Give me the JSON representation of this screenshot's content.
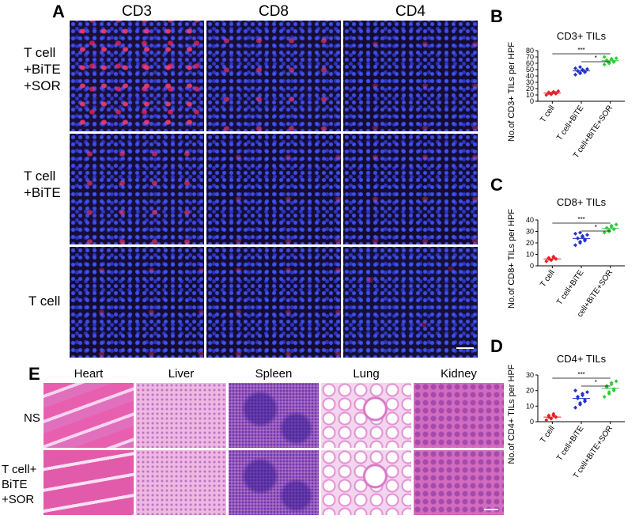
{
  "panel_letters": {
    "a": "A",
    "b": "B",
    "c": "C",
    "d": "D",
    "e": "E"
  },
  "panel_a": {
    "columns": [
      "CD3",
      "CD8",
      "CD4"
    ],
    "rows": [
      {
        "lines": [
          "T cell",
          "+BiTE",
          "+SOR"
        ]
      },
      {
        "lines": [
          "T cell",
          "+BiTE"
        ]
      },
      {
        "lines": [
          "T cell"
        ]
      }
    ]
  },
  "panel_e": {
    "columns": [
      "Heart",
      "Liver",
      "Spleen",
      "Lung",
      "Kidney"
    ],
    "rows": [
      {
        "lines": [
          "NS"
        ]
      },
      {
        "lines": [
          "T cell+",
          "BiTE",
          "+SOR"
        ]
      }
    ]
  },
  "chart_data": [
    {
      "type": "scatter",
      "panel": "B",
      "title": "CD3+ TILs",
      "ylabel": "No.of CD3+ TILs per HPF",
      "ylim": [
        0,
        80
      ],
      "yticks": [
        "0",
        "10",
        "20",
        "30",
        "40",
        "50",
        "60",
        "70",
        "80"
      ],
      "categories": [
        "T cell",
        "T cell+BiTE",
        "T cell+BiTE+SOR"
      ],
      "colors": [
        "#e8202a",
        "#2233cc",
        "#2fcc3a"
      ],
      "series": [
        {
          "values": [
            10,
            11,
            12,
            12,
            13,
            13,
            14,
            14,
            15,
            16
          ]
        },
        {
          "values": [
            42,
            44,
            45,
            46,
            47,
            48,
            48,
            49,
            50,
            51,
            52,
            54
          ]
        },
        {
          "values": [
            58,
            60,
            61,
            62,
            63,
            64,
            65,
            66,
            67,
            68,
            70
          ]
        }
      ],
      "significance": [
        {
          "pair": [
            0,
            2
          ],
          "label": "***"
        },
        {
          "pair": [
            1,
            2
          ],
          "label": "*"
        }
      ]
    },
    {
      "type": "scatter",
      "panel": "C",
      "title": "CD8+ TILs",
      "ylabel": "No.of CD8+ TILs per HPF",
      "ylim": [
        0,
        40
      ],
      "yticks": [
        "0",
        "10",
        "20",
        "30",
        "40"
      ],
      "categories": [
        "T cell",
        "T cell+BiTE",
        "T cell+BiTE+SOR"
      ],
      "colors": [
        "#e8202a",
        "#2233cc",
        "#2fcc3a"
      ],
      "series": [
        {
          "values": [
            4,
            5,
            5,
            6,
            6,
            6,
            7,
            7,
            8
          ]
        },
        {
          "values": [
            18,
            20,
            21,
            22,
            23,
            24,
            24,
            25,
            26,
            27,
            28,
            29
          ]
        },
        {
          "values": [
            29,
            30,
            31,
            32,
            32,
            33,
            33,
            34,
            35,
            36
          ]
        }
      ],
      "significance": [
        {
          "pair": [
            0,
            2
          ],
          "label": "***"
        },
        {
          "pair": [
            1,
            2
          ],
          "label": "*"
        }
      ]
    },
    {
      "type": "scatter",
      "panel": "D",
      "title": "CD4+ TILs",
      "ylabel": "No.of CD4+ TILs per HPF",
      "ylim": [
        0,
        30
      ],
      "yticks": [
        "0",
        "10",
        "20",
        "30"
      ],
      "categories": [
        "T cell",
        "T cell+BiTE",
        "T cell+BiTE+SOR"
      ],
      "colors": [
        "#e8202a",
        "#2233cc",
        "#2fcc3a"
      ],
      "series": [
        {
          "values": [
            1,
            2,
            2,
            3,
            3,
            3,
            4,
            4,
            5
          ]
        },
        {
          "values": [
            9,
            11,
            12,
            13,
            14,
            15,
            16,
            17,
            18,
            19,
            20
          ]
        },
        {
          "values": [
            16,
            18,
            19,
            20,
            21,
            22,
            23,
            24,
            25,
            26
          ]
        }
      ],
      "significance": [
        {
          "pair": [
            0,
            2
          ],
          "label": "***"
        },
        {
          "pair": [
            1,
            2
          ],
          "label": "*"
        }
      ]
    }
  ]
}
